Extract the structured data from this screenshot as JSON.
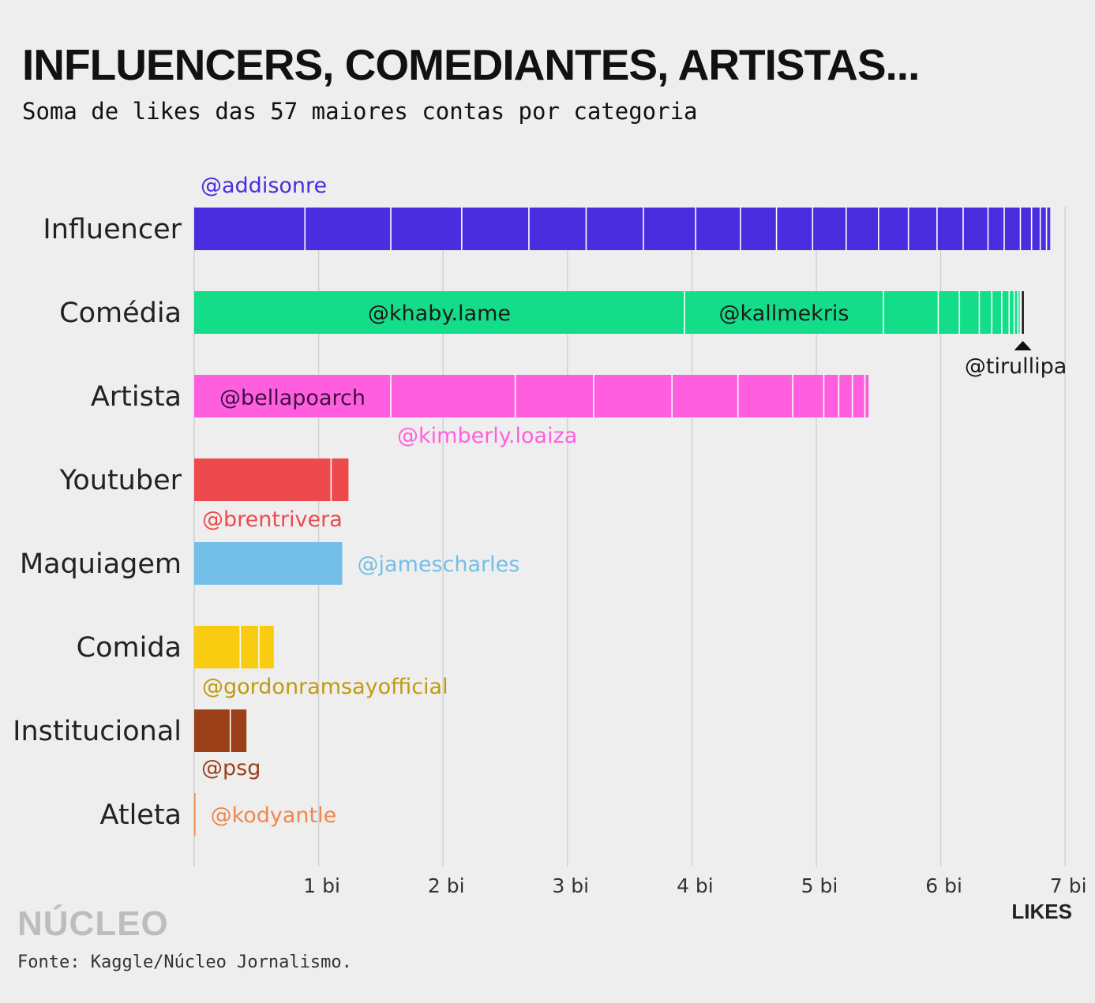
{
  "title": "INFLUENCERS, COMEDIANTES, ARTISTAS...",
  "subtitle": "Soma de likes das 57 maiores contas por categoria",
  "brand": "NÚCLEO",
  "source": "Fonte: Kaggle/Núcleo Jornalismo.",
  "chart_data": {
    "type": "bar",
    "orientation": "horizontal",
    "stacked": true,
    "x_label": "LIKES",
    "x_unit": "bi",
    "xlim": [
      0,
      7
    ],
    "x_ticks": [
      {
        "value": 1,
        "label": "1 bi"
      },
      {
        "value": 2,
        "label": "2 bi"
      },
      {
        "value": 3,
        "label": "3 bi"
      },
      {
        "value": 4,
        "label": "4 bi"
      },
      {
        "value": 5,
        "label": "5 bi"
      },
      {
        "value": 6,
        "label": "6 bi"
      },
      {
        "value": 7,
        "label": "7 bi"
      }
    ],
    "grid": "vertical",
    "categories": [
      {
        "name": "Influencer",
        "color": "#4a2ddf",
        "label_color": "#4a2ddf",
        "segments": [
          0.89,
          0.69,
          0.57,
          0.54,
          0.46,
          0.46,
          0.42,
          0.36,
          0.29,
          0.29,
          0.27,
          0.26,
          0.24,
          0.23,
          0.21,
          0.2,
          0.13,
          0.13,
          0.09,
          0.07,
          0.05,
          0.03
        ],
        "labels": [
          {
            "text": "@addisonre",
            "segment": 0,
            "position": "above"
          }
        ]
      },
      {
        "name": "Comédia",
        "color": "#14dd8a",
        "label_color": "#1a1a1a",
        "end_marker": true,
        "segments": [
          3.94,
          1.6,
          0.44,
          0.17,
          0.16,
          0.1,
          0.08,
          0.06,
          0.04,
          0.03,
          0.02,
          0.01,
          0.01
        ],
        "labels": [
          {
            "text": "@khaby.lame",
            "segment": 0,
            "position": "inside"
          },
          {
            "text": "@kallmekris",
            "segment": 1,
            "position": "inside"
          },
          {
            "text": "@tirullipa",
            "segment": 12,
            "position": "marker"
          }
        ]
      },
      {
        "name": "Artista",
        "color": "#ff5fdf",
        "label_color": "#ff5fdf",
        "segments": [
          1.58,
          1.0,
          0.63,
          0.63,
          0.53,
          0.44,
          0.25,
          0.12,
          0.11,
          0.1,
          0.03
        ],
        "labels": [
          {
            "text": "@bellapoarch",
            "segment": 0,
            "position": "inside",
            "color": "#3a1040"
          },
          {
            "text": "@kimberly.loaiza",
            "segment": 1,
            "position": "below"
          }
        ]
      },
      {
        "name": "Youtuber",
        "color": "#ec4a4d",
        "label_color": "#ec4a4d",
        "segments": [
          1.1,
          0.14
        ],
        "labels": [
          {
            "text": "@brentrivera",
            "segment": 0,
            "position": "below"
          }
        ]
      },
      {
        "name": "Maquiagem",
        "color": "#73bfe8",
        "label_color": "#73bfe8",
        "segments": [
          1.19
        ],
        "labels": [
          {
            "text": "@jamescharles",
            "segment": 0,
            "position": "right"
          }
        ]
      },
      {
        "name": "Comida",
        "color": "#f9cc12",
        "label_color": "#bf9a10",
        "segments": [
          0.37,
          0.15,
          0.12
        ],
        "labels": [
          {
            "text": "@gordonramsayofficial",
            "segment": 0,
            "position": "below"
          }
        ]
      },
      {
        "name": "Institucional",
        "color": "#9b4018",
        "label_color": "#9b4018",
        "segments": [
          0.29,
          0.13
        ],
        "labels": [
          {
            "text": "@psg",
            "segment": 0,
            "position": "below"
          }
        ]
      },
      {
        "name": "Atleta",
        "color": "#f0864e",
        "label_color": "#f0864e",
        "segments": [
          0.01
        ],
        "labels": [
          {
            "text": "@kodyantle",
            "segment": 0,
            "position": "right"
          }
        ]
      }
    ]
  }
}
